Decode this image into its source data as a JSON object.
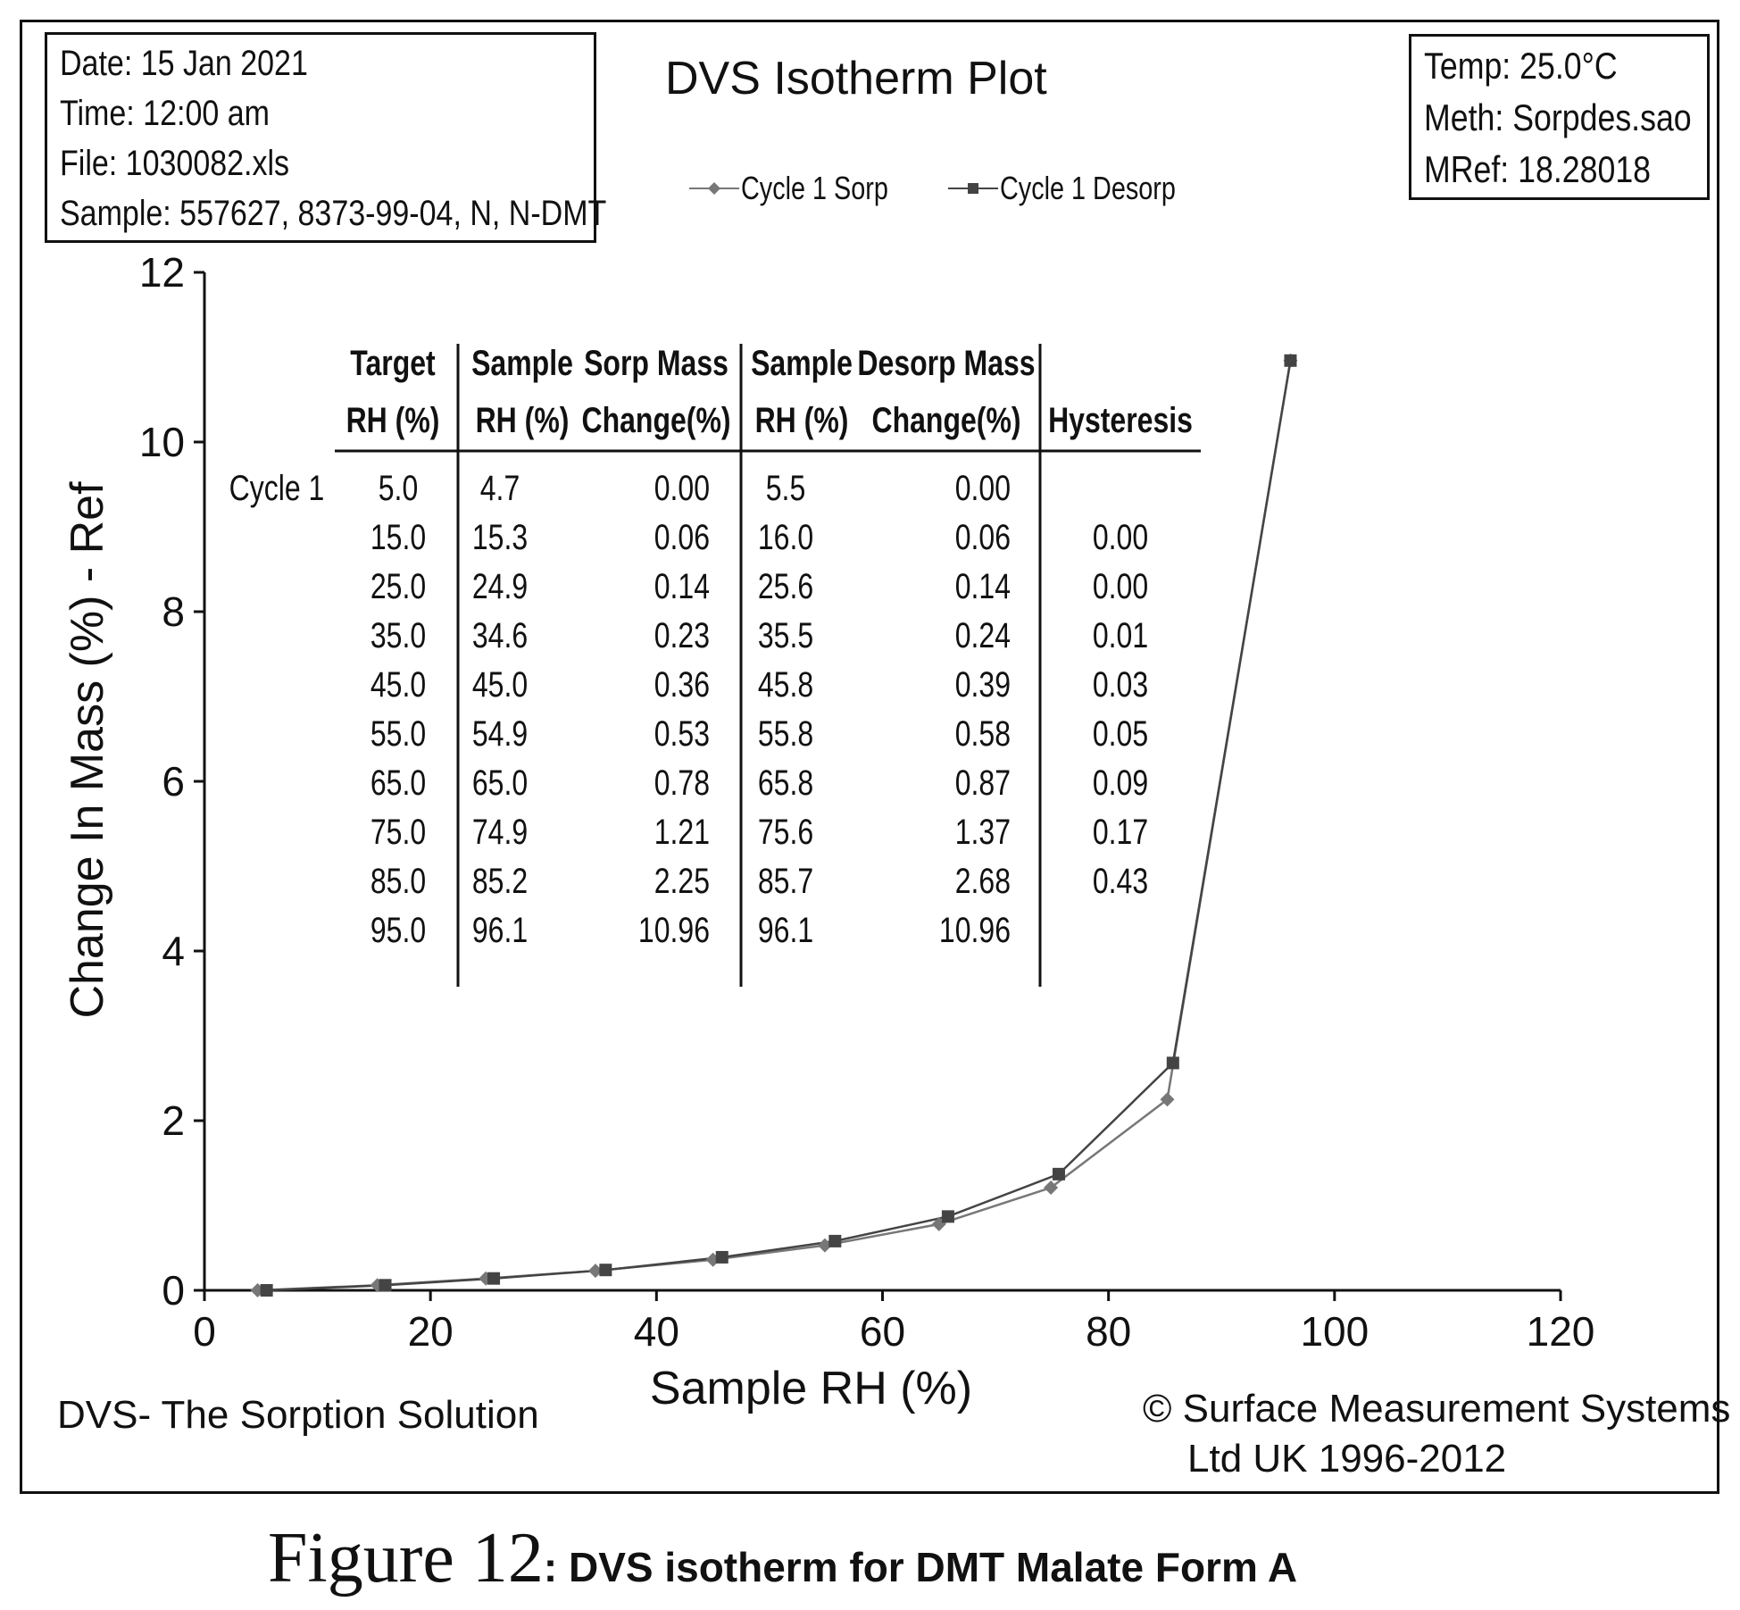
{
  "info_left": [
    "Date: 15 Jan 2021",
    "Time: 12:00 am",
    "File: 1030082.xls",
    "Sample: 557627, 8373-99-04, N, N-DMT"
  ],
  "info_right": [
    "Temp:  25.0°C",
    "Meth:  Sorpdes.sao",
    "MRef:  18.28018"
  ],
  "footer_left": "DVS-  The Sorption Solution",
  "footer_right": [
    "© Surface Measurement Systems",
    "Ltd UK 1996-2012"
  ],
  "caption": {
    "figure": "Figure 12",
    "text": ": DVS isotherm for DMT Malate Form A"
  },
  "chart_data": {
    "type": "line",
    "title": "DVS Isotherm Plot",
    "xlabel": "Sample RH (%)",
    "ylabel": "Change In Mass (%) - Ref",
    "xlim": [
      0,
      120
    ],
    "ylim": [
      0,
      12
    ],
    "xticks": [
      0,
      20,
      40,
      60,
      80,
      100,
      120
    ],
    "yticks": [
      0,
      2,
      4,
      6,
      8,
      10,
      12
    ],
    "grid": false,
    "legend_position": "top",
    "series": [
      {
        "name": "Cycle 1 Sorp",
        "marker": "diamond",
        "color": "#777777",
        "x": [
          4.7,
          15.3,
          24.9,
          34.6,
          45.0,
          54.9,
          65.0,
          74.9,
          85.2,
          96.1
        ],
        "y": [
          0.0,
          0.06,
          0.14,
          0.23,
          0.36,
          0.53,
          0.78,
          1.21,
          2.25,
          10.96
        ]
      },
      {
        "name": "Cycle 1 Desorp",
        "marker": "square",
        "color": "#444444",
        "x": [
          96.1,
          85.7,
          75.6,
          65.8,
          55.8,
          45.8,
          35.5,
          25.6,
          16.0,
          5.5
        ],
        "y": [
          10.96,
          2.68,
          1.37,
          0.87,
          0.58,
          0.39,
          0.24,
          0.14,
          0.06,
          0.0
        ]
      }
    ],
    "table": {
      "cycle_label": "Cycle 1",
      "headers": [
        [
          "Target",
          "RH (%)"
        ],
        [
          "Sample",
          "RH (%)"
        ],
        [
          "Sorp Mass",
          "Change(%)"
        ],
        [
          "Sample",
          "RH (%)"
        ],
        [
          "Desorp Mass",
          "Change(%)"
        ],
        [
          "",
          "Hysteresis"
        ]
      ],
      "rows": [
        [
          "5.0",
          "4.7",
          "0.00",
          "5.5",
          "0.00",
          ""
        ],
        [
          "15.0",
          "15.3",
          "0.06",
          "16.0",
          "0.06",
          "0.00"
        ],
        [
          "25.0",
          "24.9",
          "0.14",
          "25.6",
          "0.14",
          "0.00"
        ],
        [
          "35.0",
          "34.6",
          "0.23",
          "35.5",
          "0.24",
          "0.01"
        ],
        [
          "45.0",
          "45.0",
          "0.36",
          "45.8",
          "0.39",
          "0.03"
        ],
        [
          "55.0",
          "54.9",
          "0.53",
          "55.8",
          "0.58",
          "0.05"
        ],
        [
          "65.0",
          "65.0",
          "0.78",
          "65.8",
          "0.87",
          "0.09"
        ],
        [
          "75.0",
          "74.9",
          "1.21",
          "75.6",
          "1.37",
          "0.17"
        ],
        [
          "85.0",
          "85.2",
          "2.25",
          "85.7",
          "2.68",
          "0.43"
        ],
        [
          "95.0",
          "96.1",
          "10.96",
          "96.1",
          "10.96",
          ""
        ]
      ]
    }
  }
}
